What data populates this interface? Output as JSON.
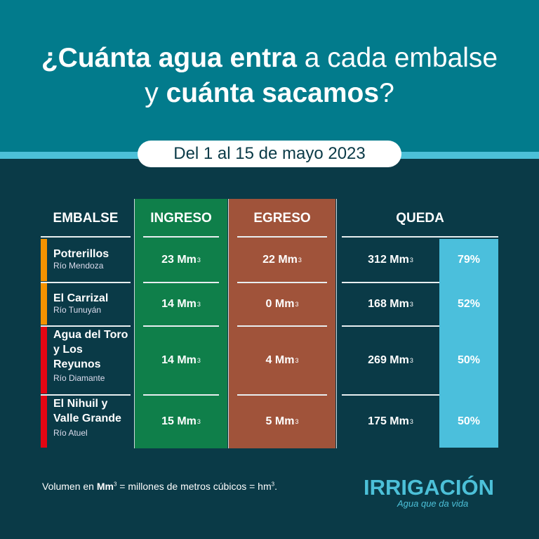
{
  "header": {
    "title_bold1": "¿Cuánta agua entra",
    "title_rest1": " a cada embalse",
    "title_rest2": "y ",
    "title_bold2": "cuánta sacamos",
    "title_end": "?",
    "period": "Del 1 al 15 de mayo 2023"
  },
  "columns": {
    "embalse": "EMBALSE",
    "ingreso": "INGRESO",
    "egreso": "EGRESO",
    "queda": "QUEDA"
  },
  "unit": "Mm",
  "unit_sup": "3",
  "rows": [
    {
      "name": "Potrerillos",
      "river": "Río Mendoza",
      "ingreso": "23 Mm",
      "egreso": "22 Mm",
      "queda": "312 Mm",
      "pct": "79%",
      "color": "#f39200"
    },
    {
      "name": "El Carrizal",
      "river": "Río Tunuyán",
      "ingreso": "14 Mm",
      "egreso": "0 Mm",
      "queda": "168 Mm",
      "pct": "52%",
      "color": "#f39200"
    },
    {
      "name": "Agua del Toro y Los Reyunos",
      "river": "Río Diamante",
      "ingreso": "14 Mm",
      "egreso": "4 Mm",
      "queda": "269 Mm",
      "pct": "50%",
      "color": "#e30613"
    },
    {
      "name": "El Nihuil y Valle Grande",
      "river": "Río Atuel",
      "ingreso": "15 Mm",
      "egreso": "5  Mm",
      "queda": "175 Mm",
      "pct": "50%",
      "color": "#e30613"
    }
  ],
  "footer": {
    "pre": "Volumen en ",
    "bold": "Mm",
    "sup": "3",
    "post": " = millones de metros cúbicos = hm",
    "sup2": "3",
    "end": "."
  },
  "logo": {
    "name": "IRRIGACIÓN",
    "tagline": "Agua que da vida"
  },
  "colors": {
    "top": "#027b8c",
    "background": "#0a3a47",
    "ingreso": "#0f7f4a",
    "egreso": "#a0533a",
    "percent": "#4bbfdc"
  }
}
